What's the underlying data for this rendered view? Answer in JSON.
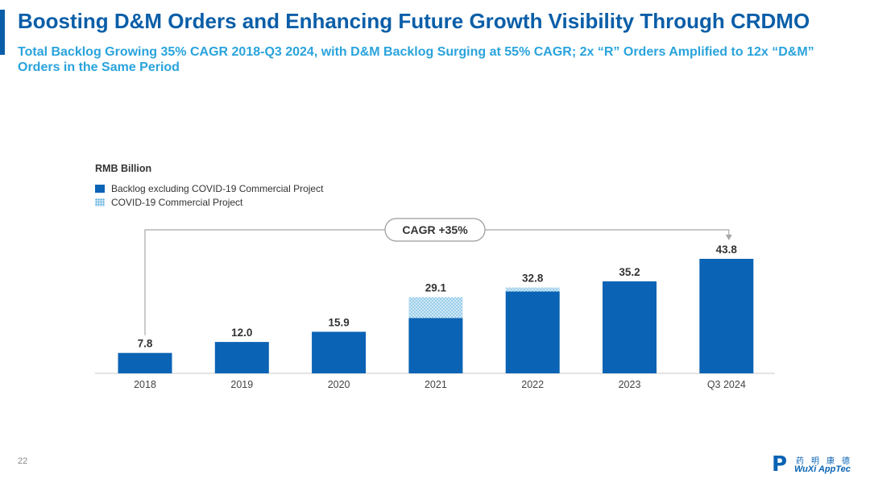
{
  "header": {
    "title": "Boosting D&M Orders and Enhancing Future Growth Visibility Through CRDMO",
    "subtitle": "Total Backlog Growing 35% CAGR 2018-Q3 2024, with D&M Backlog Surging at 55% CAGR; 2x “R” Orders Amplified to 12x “D&M” Orders in the Same Period"
  },
  "chart_data": {
    "type": "bar",
    "unit_label": "RMB Billion",
    "categories": [
      "2018",
      "2019",
      "2020",
      "2021",
      "2022",
      "2023",
      "Q3 2024"
    ],
    "series": [
      {
        "name": "Backlog excluding COVID-19 Commercial Project",
        "values": [
          7.8,
          12.0,
          15.9,
          21.2,
          31.3,
          35.2,
          43.8
        ]
      },
      {
        "name": "COVID-19 Commercial Project",
        "values": [
          0,
          0,
          0,
          7.9,
          1.5,
          0,
          0
        ]
      }
    ],
    "totals": [
      "7.8",
      "12.0",
      "15.9",
      "29.1",
      "32.8",
      "35.2",
      "43.8"
    ],
    "annotation": "CAGR +35%",
    "ylim": [
      0,
      43.8
    ],
    "stacked": true,
    "legend_position": "top-left",
    "colors": {
      "backlog": "#0a63b4",
      "covid": "#cfe8f6",
      "covid_dots": "#5aaedc"
    }
  },
  "footer": {
    "page_number": "22",
    "logo_cn": "药明康德",
    "logo_en": "WuXi AppTec"
  }
}
